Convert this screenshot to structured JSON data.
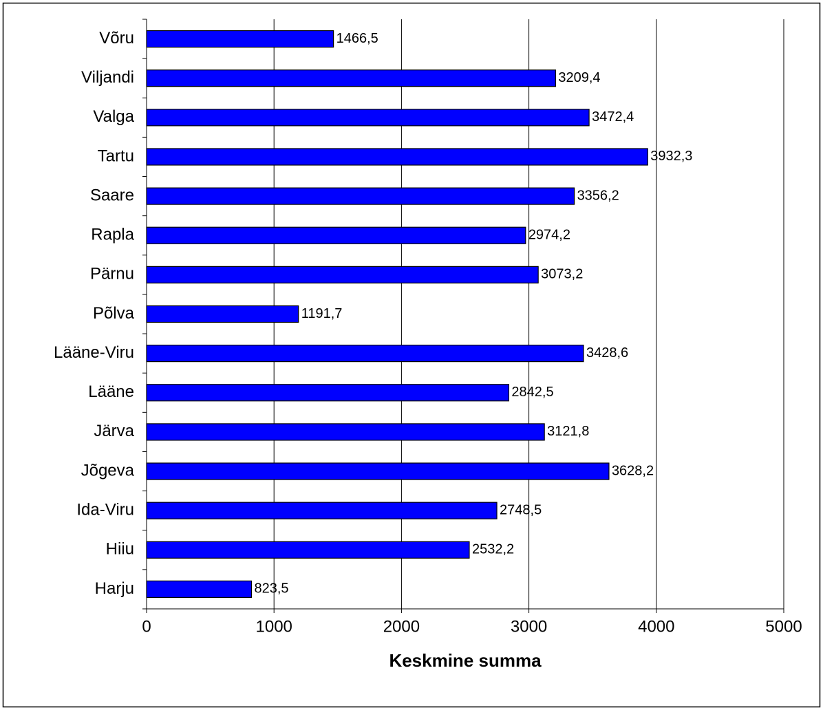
{
  "chart_data": {
    "type": "bar",
    "orientation": "horizontal",
    "xlabel": "Keskmine summa",
    "categories": [
      "Harju",
      "Hiiu",
      "Ida-Viru",
      "Jõgeva",
      "Järva",
      "Lääne",
      "Lääne-Viru",
      "Põlva",
      "Pärnu",
      "Rapla",
      "Saare",
      "Tartu",
      "Valga",
      "Viljandi",
      "Võru"
    ],
    "values": [
      823.5,
      2532.2,
      2748.5,
      3628.2,
      3121.8,
      2842.5,
      3428.6,
      1191.7,
      3073.2,
      2974.2,
      3356.2,
      3932.3,
      3472.4,
      3209.4,
      1466.5
    ],
    "value_labels": [
      "823,5",
      "2532,2",
      "2748,5",
      "3628,2",
      "3121,8",
      "2842,5",
      "3428,6",
      "1191,7",
      "3073,2",
      "2974,2",
      "3356,2",
      "3932,3",
      "3472,4",
      "3209,4",
      "1466,5"
    ],
    "color": "#0000ff",
    "xlim": [
      0,
      5000
    ],
    "xticks": [
      0,
      1000,
      2000,
      3000,
      4000,
      5000
    ],
    "grid": true
  }
}
